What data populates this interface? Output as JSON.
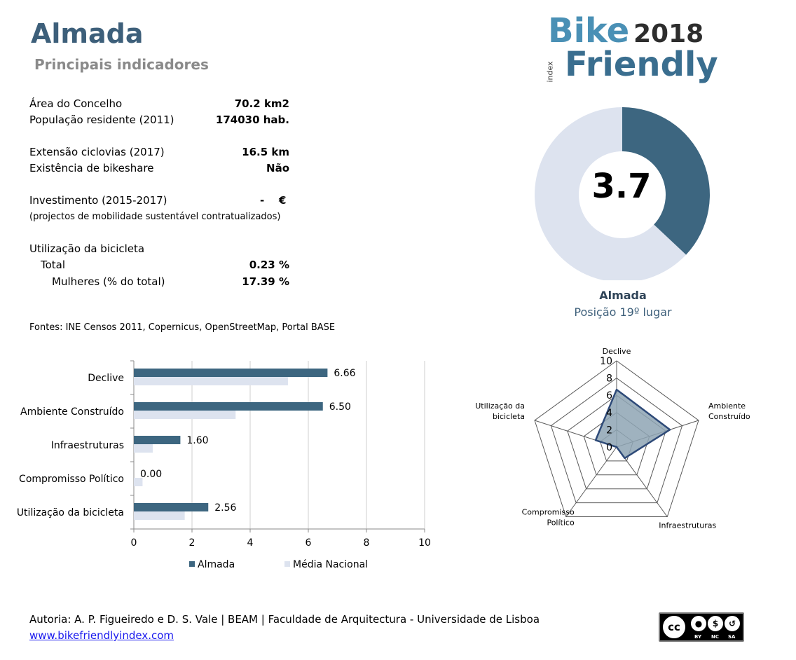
{
  "header": {
    "title": "Almada",
    "subtitle": "Principais indicadores"
  },
  "indicators": {
    "area_label": "Área do Concelho",
    "area_value": "70.2 km2",
    "pop_label": "População residente (2011)",
    "pop_value": "174030 hab.",
    "cycle_label": "Extensão ciclovias (2017)",
    "cycle_value": "16.5 km",
    "bikeshare_label": "Existência de bikeshare",
    "bikeshare_value": "Não",
    "invest_label": "Investimento (2015-2017)",
    "invest_value": "-",
    "invest_currency": "€",
    "invest_note": "(projectos de mobilidade sustentável contratualizados)",
    "usage_label": "Utilização da bicicleta",
    "total_label": "Total",
    "total_value": "0.23 %",
    "women_label": "Mulheres (% do total)",
    "women_value": "17.39 %"
  },
  "sources": "Fontes: INE Censos 2011, Copernicus, OpenStreetMap,  Portal BASE",
  "logo": {
    "line1": "Bike",
    "year": "2018",
    "index": "index",
    "line2": "Friendly"
  },
  "donut": {
    "score": "3.7",
    "name": "Almada",
    "position": "Posição 19º lugar",
    "fraction": 0.37,
    "color_filled": "#3d6680",
    "color_rest": "#dde3ef"
  },
  "footer": {
    "authors": "Autoria: A. P. Figueiredo e D. S. Vale | BEAM | Faculdade de Arquitectura - Universidade de Lisboa",
    "link": "www.bikefriendlyindex.com"
  },
  "license": {
    "cc": "cc",
    "by": "BY",
    "nc": "NC",
    "sa": "SA"
  },
  "chart_data": [
    {
      "type": "bar",
      "orientation": "horizontal",
      "categories": [
        "Declive",
        "Ambiente Construído",
        "Infraestruturas",
        "Compromisso Político",
        "Utilização da bicicleta"
      ],
      "series": [
        {
          "name": "Almada",
          "values": [
            6.66,
            6.5,
            1.6,
            0.0,
            2.56
          ],
          "labels": [
            "6.66",
            "6.50",
            "1.60",
            "0.00",
            "2.56"
          ],
          "color": "#3d6680"
        },
        {
          "name": "Média Nacional",
          "values": [
            5.3,
            3.5,
            0.65,
            0.3,
            1.75
          ],
          "color": "#dde3ef"
        }
      ],
      "xlim": [
        0,
        10
      ],
      "xticks": [
        "0",
        "2",
        "4",
        "6",
        "8",
        "10"
      ],
      "grid": true,
      "legend": "bottom"
    },
    {
      "type": "radar",
      "axes": [
        "Declive",
        "Ambiente Construído",
        "Infraestruturas",
        "Compromisso Político",
        "Utilização da bicicleta"
      ],
      "axis_labels": [
        [
          "Declive"
        ],
        [
          "Ambiente",
          "Construído"
        ],
        [
          "Infraestruturas"
        ],
        [
          "Compromisso",
          "Político"
        ],
        [
          "Utilização da",
          "bicicleta"
        ]
      ],
      "values": [
        6.66,
        6.5,
        1.6,
        0.0,
        2.56
      ],
      "rlim": [
        0,
        10
      ],
      "rticks": [
        "0",
        "2",
        "4",
        "6",
        "8",
        "10"
      ],
      "fill_color": "#8ea4b4",
      "line_color": "#2e4a78"
    }
  ]
}
